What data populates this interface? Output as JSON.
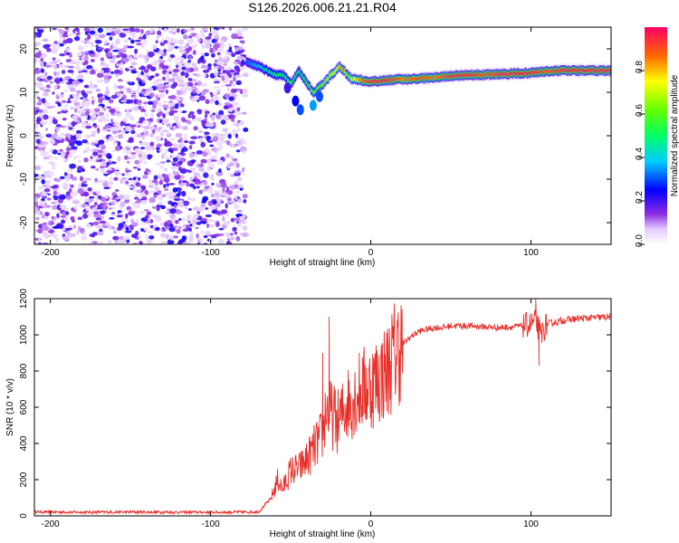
{
  "figure_title": "S126.2026.006.21.21.R04",
  "chart_data": [
    {
      "type": "heatmap",
      "title": "S126.2026.006.21.21.R04",
      "xlabel": "Height of straight line (km)",
      "ylabel": "Frequency (Hz)",
      "xlim": [
        -210,
        150
      ],
      "ylim": [
        -25,
        25
      ],
      "xticks": [
        -200,
        -100,
        0,
        100
      ],
      "yticks": [
        -20,
        -10,
        0,
        10,
        20
      ],
      "noise_region_x": [
        -210,
        -78
      ],
      "noise_amplitude_range": [
        0.0,
        0.2
      ],
      "ridge": {
        "x": [
          -78,
          -70,
          -65,
          -60,
          -55,
          -50,
          -45,
          -40,
          -36,
          -33,
          -30,
          -25,
          -22,
          -20,
          -17,
          -15,
          -12,
          -8,
          -4,
          0,
          10,
          20,
          30,
          40,
          50,
          60,
          70,
          80,
          90,
          100,
          110,
          120,
          130,
          140,
          150
        ],
        "freq": [
          17,
          16,
          15,
          14,
          14,
          12,
          15,
          12,
          10,
          11,
          12,
          14,
          15,
          16,
          15,
          14,
          13,
          13,
          12.5,
          12.5,
          12.8,
          13,
          13.2,
          13.5,
          13.8,
          14,
          14,
          14.2,
          14.3,
          14.5,
          14.8,
          15,
          15,
          15,
          15
        ],
        "amp": [
          0.3,
          0.4,
          0.45,
          0.5,
          0.5,
          0.55,
          0.5,
          0.55,
          0.6,
          0.6,
          0.65,
          0.7,
          0.75,
          0.8,
          0.85,
          0.6,
          0.7,
          0.8,
          0.9,
          0.95,
          0.95,
          0.85,
          0.9,
          0.85,
          0.95,
          0.95,
          0.9,
          0.95,
          0.95,
          0.95,
          0.9,
          0.95,
          0.95,
          0.95,
          0.95
        ]
      },
      "colorbar": {
        "label": "Normalized spectral amplitude",
        "range": [
          0.0,
          1.0
        ],
        "ticks": [
          "0.0",
          "0.2",
          "0.4",
          "0.6",
          "0.8"
        ],
        "tick_values": [
          0.0,
          0.2,
          0.4,
          0.6,
          0.8
        ]
      }
    },
    {
      "type": "line",
      "xlabel": "Height of straight line (km)",
      "ylabel": "SNR (10 * v/v)",
      "xlim": [
        -210,
        150
      ],
      "ylim": [
        0,
        1200
      ],
      "xticks": [
        -200,
        -100,
        0,
        100
      ],
      "yticks": [
        0,
        200,
        400,
        600,
        800,
        1000,
        1200
      ],
      "series": [
        {
          "name": "SNR",
          "color": "#e8302b",
          "x": [
            -210,
            -180,
            -150,
            -120,
            -90,
            -70,
            -62,
            -58,
            -55,
            -50,
            -45,
            -40,
            -35,
            -30,
            -28,
            -25,
            -20,
            -15,
            -10,
            -5,
            0,
            5,
            10,
            15,
            20,
            25,
            30,
            35,
            40,
            45,
            50,
            60,
            70,
            80,
            90,
            95,
            100,
            103,
            106,
            110,
            115,
            120,
            130,
            140,
            150
          ],
          "values": [
            22,
            20,
            21,
            20,
            20,
            22,
            100,
            200,
            150,
            250,
            260,
            310,
            380,
            450,
            600,
            560,
            520,
            620,
            660,
            700,
            720,
            760,
            800,
            900,
            950,
            990,
            1020,
            1030,
            1040,
            1040,
            1050,
            1050,
            1045,
            1040,
            1045,
            1050,
            1060,
            1080,
            1000,
            1060,
            1070,
            1080,
            1090,
            1095,
            1100
          ],
          "spikes": [
            {
              "x": -26,
              "y": 1100
            },
            {
              "x": -30,
              "y": 900
            },
            {
              "x": 103,
              "y": 1200
            },
            {
              "x": 105,
              "y": 830
            }
          ]
        }
      ]
    }
  ]
}
